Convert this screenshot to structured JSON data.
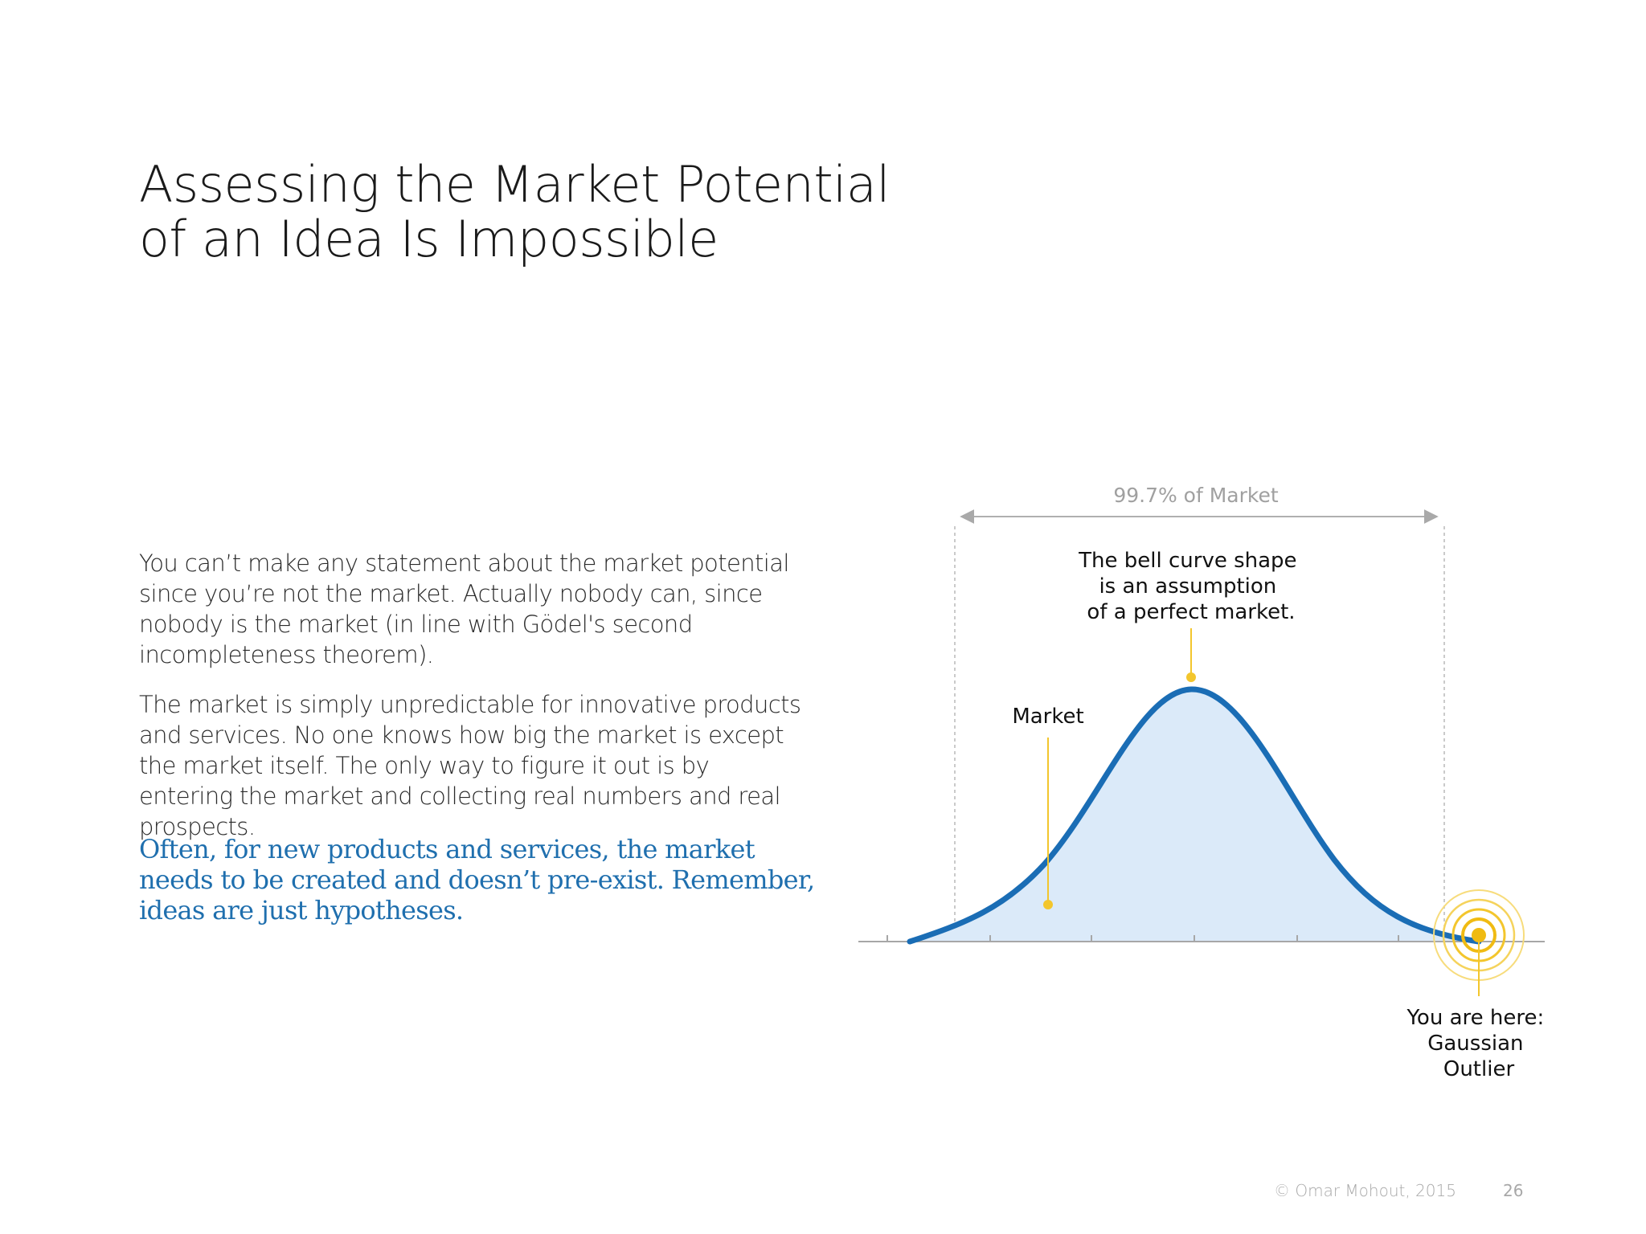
{
  "slide": {
    "title_lines": [
      "Assessing the Market Potential",
      "of an Idea Is Impossible"
    ],
    "paragraphs": [
      "You can’t make any statement about the market potential since you’re not the market. Actually nobody can, since nobody is the market (in line with Gödel's second incompleteness theorem).",
      "The market is simply unpredictable for innovative products and services. No one knows how big the market is except the market itself. The only way to figure it out is by entering the market and collecting real numbers and real prospects."
    ],
    "callout_lines": [
      "Often, for new products and services, the market",
      "needs to be created and doesn’t pre-exist. Remember,",
      "ideas are just hypotheses."
    ],
    "footer": {
      "copyright": "© Omar Mohout, 2015",
      "page": "26"
    }
  },
  "diagram": {
    "range_label": "99.7% of Market",
    "peak_label_lines": [
      "The bell curve shape",
      "is an assumption",
      "of a perfect market."
    ],
    "market_label": "Market",
    "outlier_label_lines": [
      "You are here:",
      "Gaussian",
      "Outlier"
    ],
    "colors": {
      "curve": "#1a6db5",
      "fill": "#dbeaf9",
      "marker": "#f3c62d",
      "guide": "#b0b0b0",
      "axis": "#999999"
    }
  }
}
